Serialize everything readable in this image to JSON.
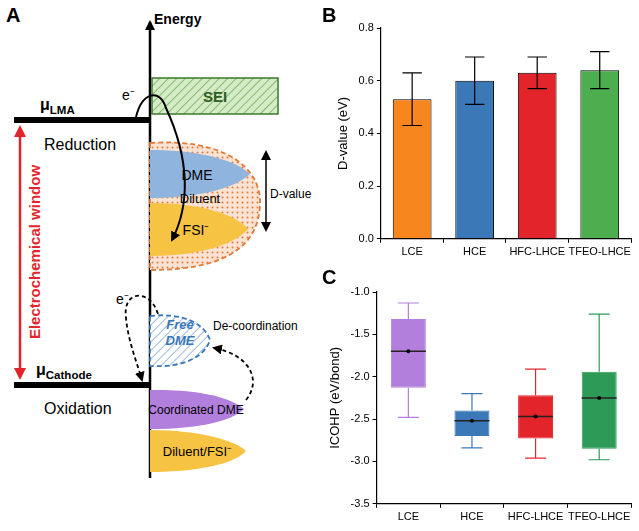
{
  "diagram": {
    "panel": "A",
    "axis_label": "Energy",
    "anode": {
      "symbol": "μ",
      "subscript": "LMA"
    },
    "cathode": {
      "symbol": "μ",
      "subscript": "Cathode"
    },
    "reduction": "Reduction",
    "oxidation": "Oxidation",
    "window": "Electrochemical window",
    "sei": "SEI",
    "electron": "e⁻",
    "reduction_states": [
      "DME",
      "Diluent",
      "FSI⁻"
    ],
    "d_value": "D-value",
    "oxidation_states": [
      "Free DME",
      "Coordinated DME",
      "Diluent/FSI⁻"
    ],
    "process": "De-coordination"
  },
  "chart_data": [
    {
      "type": "bar",
      "panel": "B",
      "y_label": "D-value (eV)",
      "categories": [
        "LCE",
        "HCE",
        "HFC-LHCE",
        "TFEO-LHCE"
      ],
      "values": [
        0.53,
        0.6,
        0.63,
        0.64
      ],
      "errors": [
        0.1,
        0.09,
        0.06,
        0.07
      ],
      "colors": [
        "#f7861e",
        "#3a78b8",
        "#e3242b",
        "#4cae4f"
      ],
      "ylim": [
        0,
        0.8
      ],
      "yticks": [
        {
          "value": 0,
          "label": "0.0"
        },
        0.2,
        0.4,
        0.6,
        0.8
      ],
      "grid": false
    },
    {
      "type": "box",
      "panel": "C",
      "y_label": "ICOHP (eV/bond)",
      "categories": [
        "LCE",
        "HCE",
        "HFC-LHCE",
        "TFEO-LHCE"
      ],
      "boxes": [
        {
          "min": -2.48,
          "q1": -2.13,
          "median": -1.7,
          "mean": -1.7,
          "q3": -1.32,
          "max": -1.13
        },
        {
          "min": -2.84,
          "q1": -2.7,
          "median": -2.52,
          "mean": -2.52,
          "q3": -2.4,
          "max": -2.2
        },
        {
          "min": -2.96,
          "q1": -2.73,
          "median": -2.47,
          "mean": -2.47,
          "q3": -2.22,
          "max": -1.91
        },
        {
          "min": -2.98,
          "q1": -2.85,
          "median": -2.25,
          "mean": -2.25,
          "q3": -1.94,
          "max": -1.26
        }
      ],
      "colors": [
        "#b280dc",
        "#3a78b8",
        "#e3242b",
        "#2e9a58"
      ],
      "ylim": [
        -3.5,
        -1.0
      ],
      "yticks": [
        -3.5,
        {
          "value": -3.0,
          "label": "-3.0"
        },
        -2.5,
        {
          "value": -2.0,
          "label": "-2.0"
        },
        -1.5,
        {
          "value": -1.0,
          "label": "-1.0"
        }
      ],
      "grid": false
    }
  ]
}
